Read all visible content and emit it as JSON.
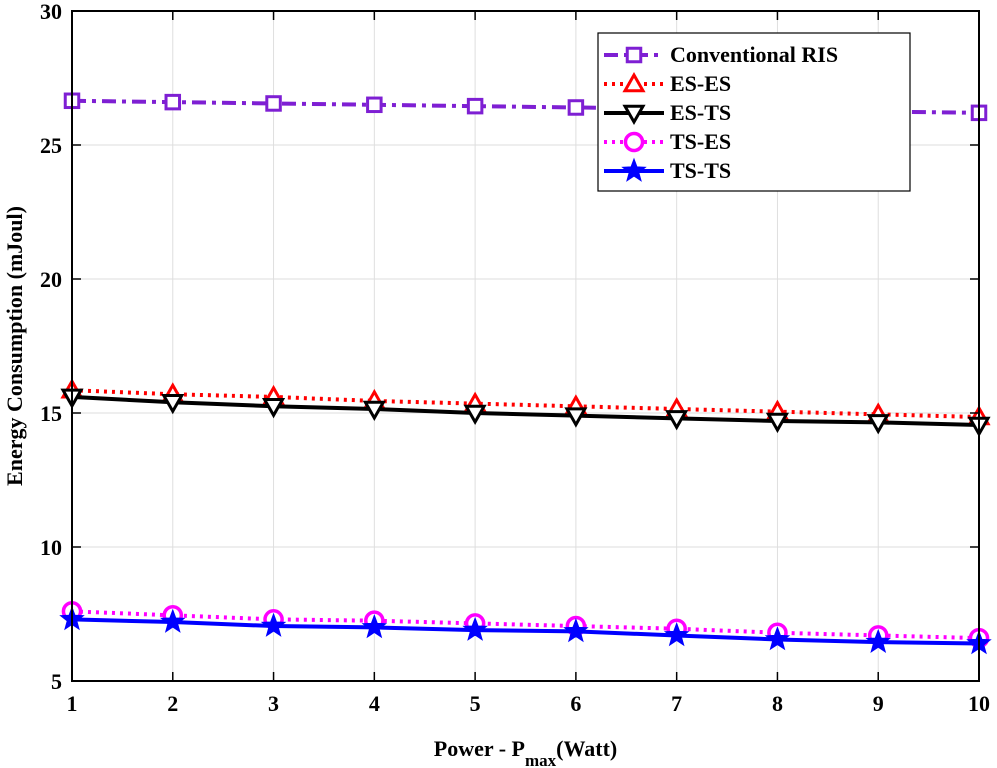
{
  "chart_data": {
    "type": "line",
    "x": [
      1,
      2,
      3,
      4,
      5,
      6,
      7,
      8,
      9,
      10
    ],
    "xlim": [
      1,
      10
    ],
    "ylim": [
      5,
      30
    ],
    "xticks": [
      "1",
      "2",
      "3",
      "4",
      "5",
      "6",
      "7",
      "8",
      "9",
      "10"
    ],
    "yticks": [
      "5",
      "10",
      "15",
      "20",
      "25",
      "30"
    ],
    "xlabel": "Power - P",
    "xlabel_sub": "max",
    "xlabel_suffix": "(Watt)",
    "ylabel": "Energy Consumption (mJoul)",
    "grid": true,
    "legend_position": "top-right",
    "series": [
      {
        "name": "Conventional RIS",
        "color": "#7e1fd3",
        "dash": "dash-dot",
        "marker": "square",
        "values": [
          26.65,
          26.6,
          26.55,
          26.5,
          26.45,
          26.4,
          26.35,
          26.3,
          26.25,
          26.2
        ]
      },
      {
        "name": "ES-ES",
        "color": "#ff0000",
        "dash": "dotted",
        "marker": "triangle-up",
        "values": [
          15.85,
          15.7,
          15.6,
          15.45,
          15.35,
          15.25,
          15.15,
          15.05,
          14.95,
          14.85
        ]
      },
      {
        "name": "ES-TS",
        "color": "#000000",
        "dash": "solid",
        "marker": "triangle-down",
        "values": [
          15.6,
          15.4,
          15.25,
          15.15,
          15.0,
          14.9,
          14.8,
          14.7,
          14.65,
          14.55
        ]
      },
      {
        "name": "TS-ES",
        "color": "#ff00ff",
        "dash": "dotted",
        "marker": "circle",
        "values": [
          7.6,
          7.45,
          7.3,
          7.25,
          7.15,
          7.05,
          6.95,
          6.8,
          6.7,
          6.6
        ]
      },
      {
        "name": "TS-TS",
        "color": "#0000ff",
        "dash": "solid",
        "marker": "star",
        "values": [
          7.3,
          7.2,
          7.05,
          7.0,
          6.9,
          6.85,
          6.7,
          6.55,
          6.45,
          6.4
        ]
      }
    ]
  }
}
